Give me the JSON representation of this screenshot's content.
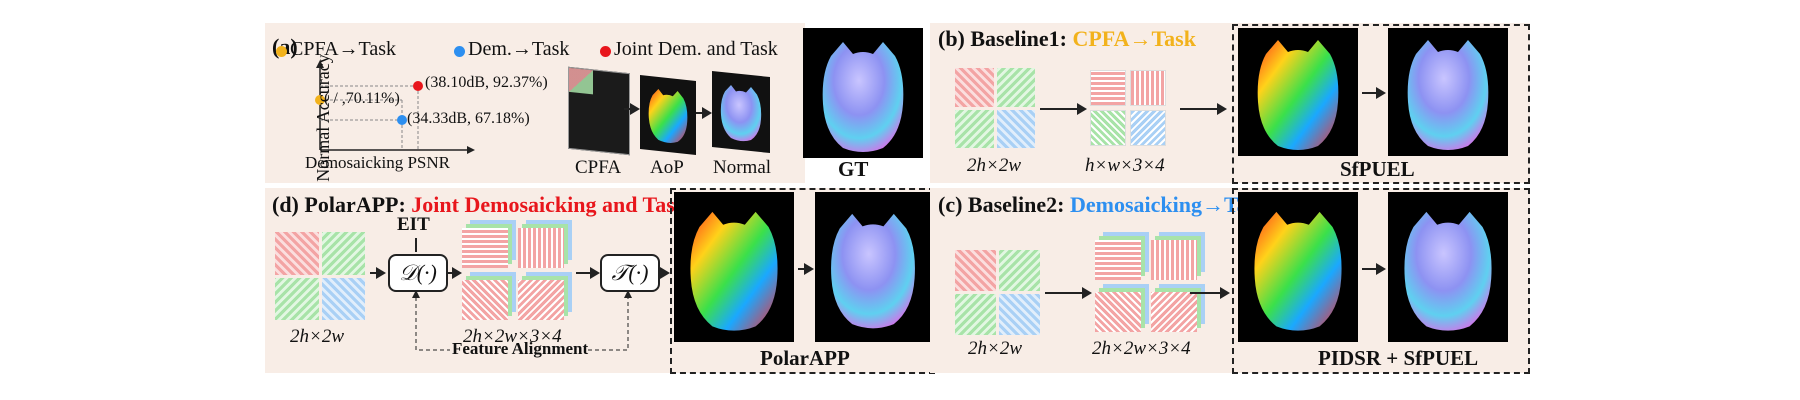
{
  "colors": {
    "cpfa": "#f2b21c",
    "dem": "#2d8ff0",
    "joint": "#e8161c",
    "panel_bg": "#f8ede6"
  },
  "panel_a": {
    "tag": "(a)",
    "legend": [
      "CPFA→Task",
      "Dem.→Task",
      "Joint Dem. and Task"
    ],
    "y_axis": "Normal Accuracy",
    "x_axis": "Demosaicking PSNR",
    "points": [
      "(38.10dB, 92.37%)",
      "( / ,70.11%)",
      "(34.33dB, 67.18%)"
    ],
    "stack_labels": [
      "CPFA",
      "AoP",
      "Normal"
    ],
    "gt": "GT"
  },
  "panel_b": {
    "tag": "(b) Baseline1:",
    "title": "CPFA→Task",
    "in_dim": "2h×2w",
    "mid_dim": "h×w×3×4",
    "method": "SfPUEL"
  },
  "panel_d": {
    "tag": "(d) PolarAPP:",
    "title": "Joint Demosaicking and Task",
    "eit": "EIT",
    "op_d": "𝒟(·)",
    "op_t": "𝒯(·)",
    "in_dim": "2h×2w",
    "mid_dim": "2h×2w×3×4",
    "align": "Feature Alignment",
    "method": "PolarAPP"
  },
  "panel_c": {
    "tag": "(c) Baseline2:",
    "title": "Demosaicking→Task",
    "in_dim": "2h×2w",
    "mid_dim": "2h×2w×3×4",
    "method": "PIDSR + SfPUEL"
  }
}
